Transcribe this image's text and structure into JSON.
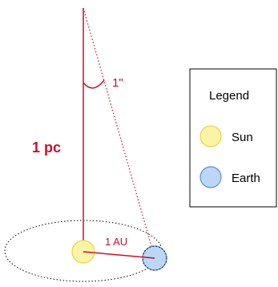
{
  "diagram": {
    "distance_label": "1 pc",
    "angle_label": "1\"",
    "baseline_label": "1 AU",
    "legend": {
      "title": "Legend",
      "items": [
        {
          "label": "Sun",
          "fill": "#fbf3a6",
          "stroke": "#e6d54d"
        },
        {
          "label": "Earth",
          "fill": "#bcd6f5",
          "stroke": "#5a8fd6"
        }
      ]
    },
    "colors": {
      "accent": "#c8102e",
      "orbit": "#000000",
      "frame": "#000000"
    }
  }
}
